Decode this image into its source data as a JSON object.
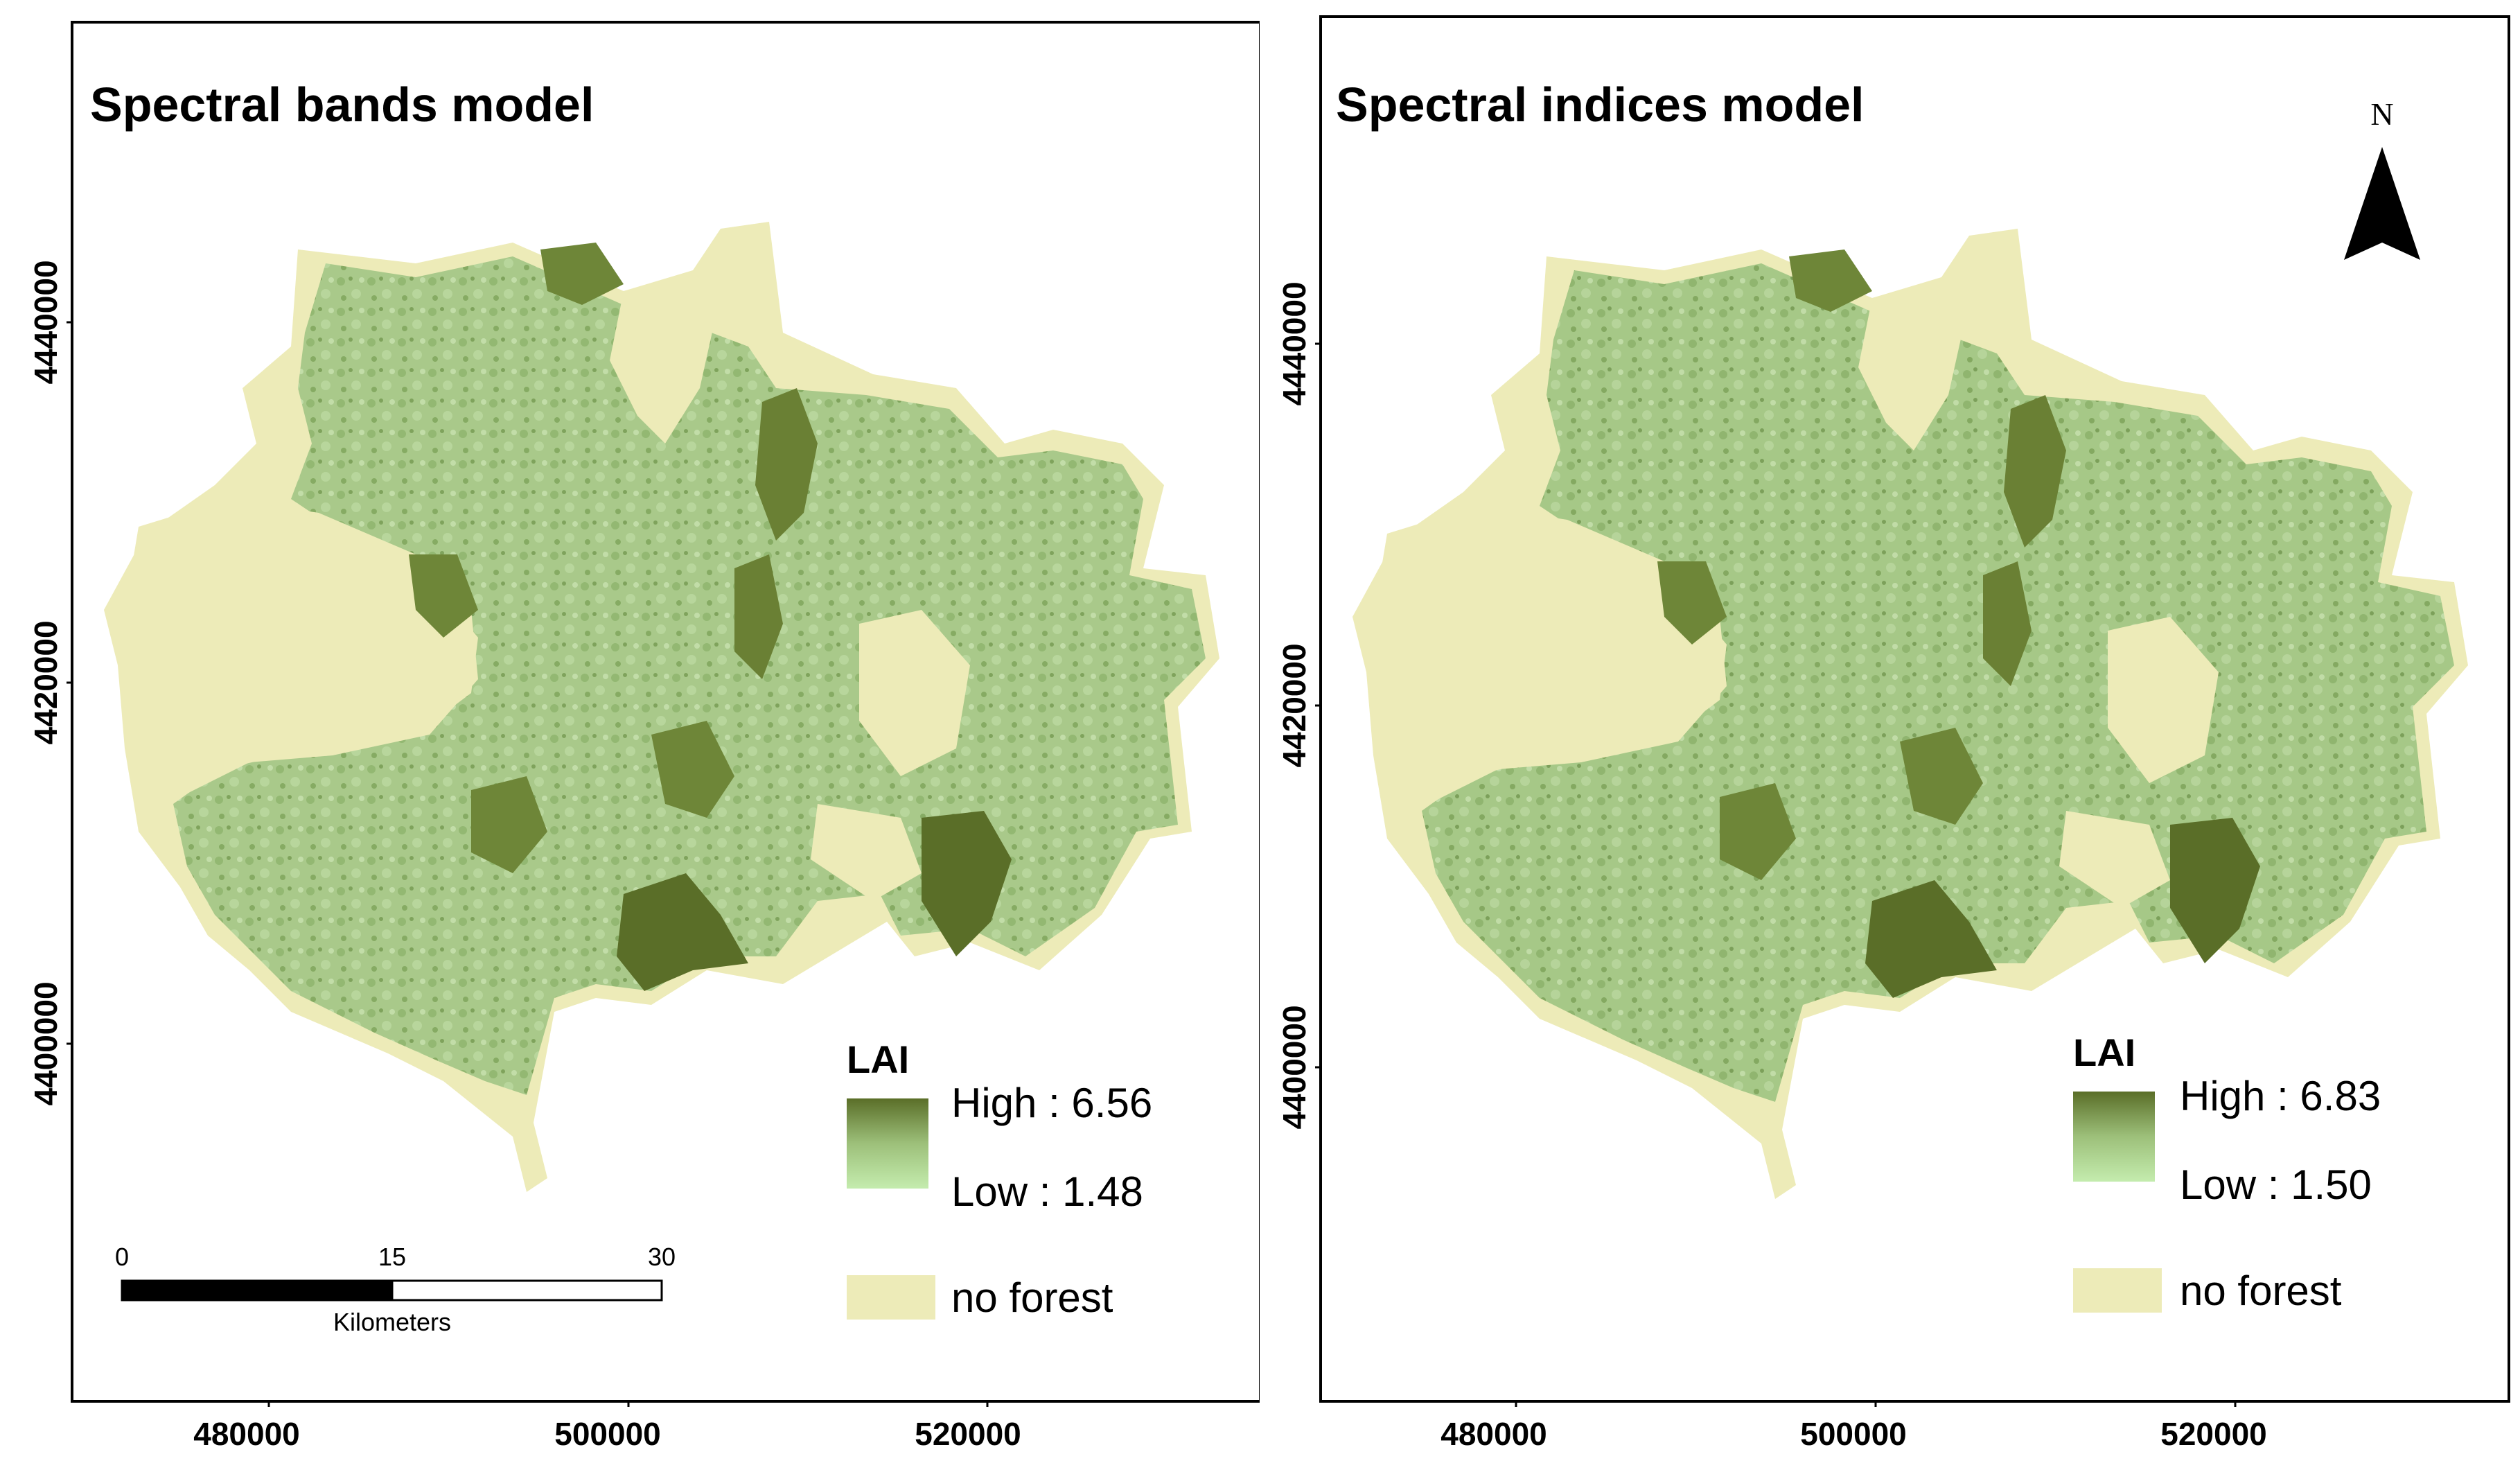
{
  "colors": {
    "no_forest": "#EDEBB8",
    "lai_high": "#5A6E28",
    "lai_mid": "#9DC07A",
    "lai_low": "#C4ECAE",
    "frame": "#000000"
  },
  "panels": [
    {
      "title": "Spectral bands model",
      "x_ticks": [
        "480000",
        "500000",
        "520000"
      ],
      "y_ticks": [
        "4440000",
        "4420000",
        "4400000"
      ],
      "legend": {
        "title": "LAI",
        "high_label": "High : 6.56",
        "low_label": "Low : 1.48",
        "no_forest_label": "no forest"
      },
      "scale_bar": {
        "ticks": [
          "0",
          "15",
          "30"
        ],
        "unit": "Kilometers"
      }
    },
    {
      "title": "Spectral indices model",
      "x_ticks": [
        "480000",
        "500000",
        "520000"
      ],
      "y_ticks": [
        "4440000",
        "4420000",
        "4400000"
      ],
      "legend": {
        "title": "LAI",
        "high_label": "High : 6.83",
        "low_label": "Low : 1.50",
        "no_forest_label": "no forest"
      },
      "north_arrow_label": "N"
    }
  ]
}
